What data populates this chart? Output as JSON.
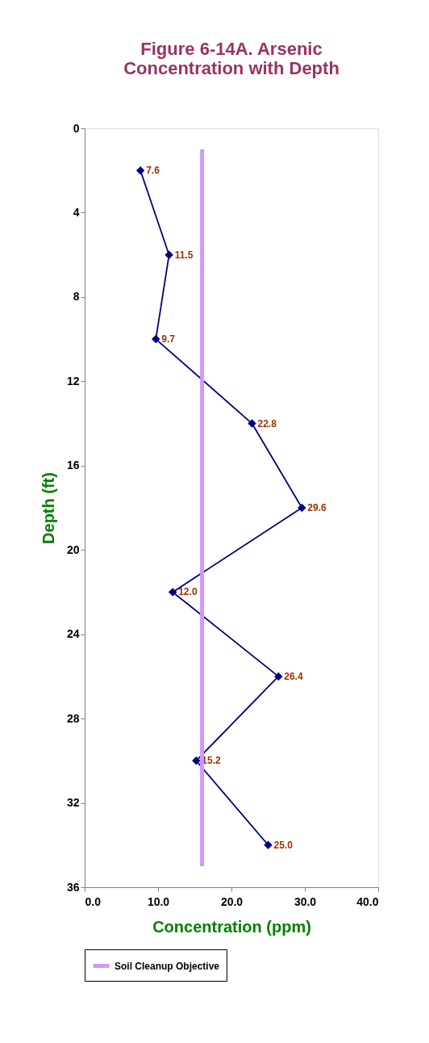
{
  "chart_data": {
    "type": "line",
    "title": "Figure 6-14A.  Arsenic\nConcentration with Depth",
    "xlabel": "Concentration (ppm)",
    "ylabel": "Depth (ft)",
    "series": [
      {
        "color": "#000080",
        "x": [
          2,
          6,
          10,
          14,
          18,
          22,
          26,
          30,
          34
        ],
        "values": [
          7.6,
          11.5,
          9.7,
          22.8,
          29.6,
          12.0,
          26.4,
          15.2,
          25.0
        ],
        "value_labels": [
          "7.6",
          "11.5",
          "9.7",
          "22.8",
          "29.6",
          "12.0",
          "26.4",
          "15.2",
          "25.0"
        ],
        "marker": "diamond"
      },
      {
        "name": "Soil Cleanup Objective",
        "color": "#cc99ff",
        "x": [
          1,
          35
        ],
        "values": [
          16,
          16
        ],
        "marker": "none"
      }
    ],
    "xlim": [
      0,
      40
    ],
    "xticks": [
      {
        "value": 0,
        "label": "0.0"
      },
      {
        "value": 10,
        "label": "10.0"
      },
      {
        "value": 20,
        "label": "20.0"
      },
      {
        "value": 30,
        "label": "30.0"
      },
      {
        "value": 40,
        "label": "40.0"
      }
    ],
    "ylim": [
      36,
      0
    ],
    "yticks": [
      0,
      4,
      8,
      12,
      16,
      20,
      24,
      28,
      32,
      36
    ],
    "grid": false,
    "legend": "bottom",
    "line_style": "solid",
    "orientation": "horizontal"
  }
}
